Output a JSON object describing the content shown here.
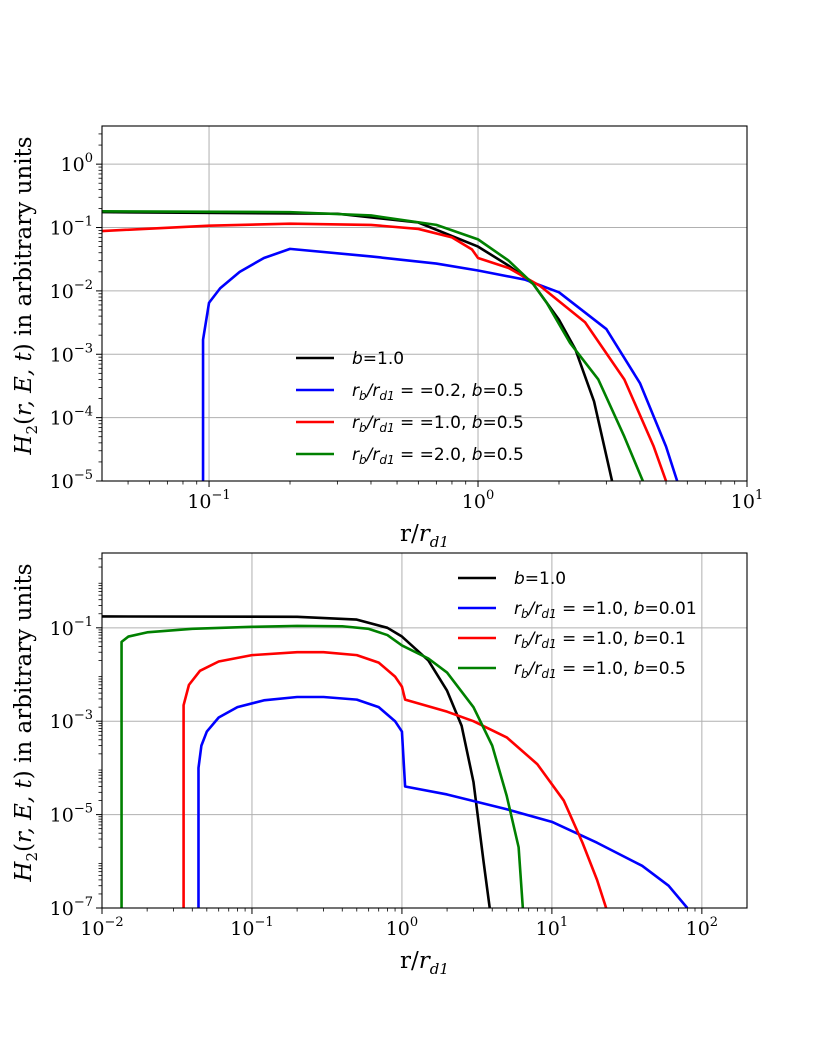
{
  "chart_data": [
    {
      "type": "line",
      "xscale": "log",
      "yscale": "log",
      "xlim": [
        0.04,
        10
      ],
      "ylim": [
        1e-05,
        4
      ],
      "grid": true,
      "xlabel": "r/r_d1",
      "ylabel": "H_2(r, E, t) in arbitrary units",
      "x_ticks": [
        {
          "base": "10",
          "exp": "−1",
          "value": 0.1
        },
        {
          "base": "10",
          "exp": "0",
          "value": 1
        },
        {
          "base": "10",
          "exp": "1",
          "value": 10
        }
      ],
      "y_ticks": [
        {
          "base": "10",
          "exp": "−5",
          "value": 1e-05
        },
        {
          "base": "10",
          "exp": "−4",
          "value": 0.0001
        },
        {
          "base": "10",
          "exp": "−3",
          "value": 0.001
        },
        {
          "base": "10",
          "exp": "−2",
          "value": 0.01
        },
        {
          "base": "10",
          "exp": "−1",
          "value": 0.1
        },
        {
          "base": "10",
          "exp": "0",
          "value": 1
        }
      ],
      "legend_position": "lower-center",
      "series": [
        {
          "name": "b=1.0",
          "label": {
            "p1": "b",
            "p2": "=1.0"
          },
          "color": "#000000",
          "points": [
            [
              0.04,
              0.175
            ],
            [
              0.3,
              0.165
            ],
            [
              0.6,
              0.12
            ],
            [
              1.0,
              0.05
            ],
            [
              1.3,
              0.025
            ],
            [
              1.6,
              0.013
            ],
            [
              2.0,
              0.0035
            ],
            [
              2.3,
              0.0012
            ],
            [
              2.7,
              0.00018
            ],
            [
              3.15,
              1e-05
            ]
          ]
        },
        {
          "name": "r_b/r_d1 = =0.2, b=0.5",
          "label": {
            "p1": "r",
            "sub1": "b",
            "p2": "/r",
            "sub2": "d1",
            "p3": " = =0.2, ",
            "p4": "b",
            "p5": "=0.5"
          },
          "color": "#0000ff",
          "points": [
            [
              0.095,
              1e-05
            ],
            [
              0.095,
              0.0017
            ],
            [
              0.1,
              0.0065
            ],
            [
              0.11,
              0.011
            ],
            [
              0.13,
              0.02
            ],
            [
              0.16,
              0.033
            ],
            [
              0.2,
              0.046
            ],
            [
              0.4,
              0.035
            ],
            [
              0.7,
              0.027
            ],
            [
              1.0,
              0.021
            ],
            [
              1.5,
              0.015
            ],
            [
              2.0,
              0.0095
            ],
            [
              3.0,
              0.0025
            ],
            [
              4.0,
              0.00035
            ],
            [
              5.0,
              3.5e-05
            ],
            [
              5.5,
              1e-05
            ]
          ]
        },
        {
          "name": "r_b/r_d1 = =1.0, b=0.5",
          "label": {
            "p1": "r",
            "sub1": "b",
            "p2": "/r",
            "sub2": "d1",
            "p3": " = =1.0, ",
            "p4": "b",
            "p5": "=0.5"
          },
          "color": "#ff0000",
          "points": [
            [
              0.04,
              0.088
            ],
            [
              0.1,
              0.107
            ],
            [
              0.2,
              0.115
            ],
            [
              0.4,
              0.11
            ],
            [
              0.6,
              0.095
            ],
            [
              0.8,
              0.07
            ],
            [
              0.95,
              0.045
            ],
            [
              1.0,
              0.033
            ],
            [
              1.3,
              0.023
            ],
            [
              1.7,
              0.012
            ],
            [
              2.5,
              0.0032
            ],
            [
              3.5,
              0.0004
            ],
            [
              4.5,
              3.5e-05
            ],
            [
              5.0,
              1e-05
            ]
          ]
        },
        {
          "name": "r_b/r_d1 = =2.0, b=0.5",
          "label": {
            "p1": "r",
            "sub1": "b",
            "p2": "/r",
            "sub2": "d1",
            "p3": " = =2.0, ",
            "p4": "b",
            "p5": "=0.5"
          },
          "color": "#008000",
          "points": [
            [
              0.04,
              0.18
            ],
            [
              0.2,
              0.175
            ],
            [
              0.4,
              0.155
            ],
            [
              0.7,
              0.11
            ],
            [
              1.0,
              0.065
            ],
            [
              1.3,
              0.03
            ],
            [
              1.6,
              0.013
            ],
            [
              1.8,
              0.0065
            ],
            [
              2.0,
              0.003
            ],
            [
              2.2,
              0.0015
            ],
            [
              2.8,
              0.0004
            ],
            [
              3.5,
              5e-05
            ],
            [
              4.1,
              1e-05
            ]
          ]
        }
      ]
    },
    {
      "type": "line",
      "xscale": "log",
      "yscale": "log",
      "xlim": [
        0.01,
        200
      ],
      "ylim": [
        1e-07,
        4
      ],
      "grid": true,
      "xlabel": "r/r_d1",
      "ylabel": "H_2(r, E, t) in arbitrary units",
      "x_ticks": [
        {
          "base": "10",
          "exp": "−2",
          "value": 0.01
        },
        {
          "base": "10",
          "exp": "−1",
          "value": 0.1
        },
        {
          "base": "10",
          "exp": "0",
          "value": 1
        },
        {
          "base": "10",
          "exp": "1",
          "value": 10
        },
        {
          "base": "10",
          "exp": "2",
          "value": 100
        }
      ],
      "y_ticks": [
        {
          "base": "10",
          "exp": "−7",
          "value": 1e-07
        },
        {
          "base": "10",
          "exp": "−5",
          "value": 1e-05
        },
        {
          "base": "10",
          "exp": "−3",
          "value": 0.001
        },
        {
          "base": "10",
          "exp": "−1",
          "value": 0.1
        }
      ],
      "legend_position": "upper-right",
      "series": [
        {
          "name": "b=1.0",
          "label": {
            "p1": "b",
            "p2": "=1.0"
          },
          "color": "#000000",
          "points": [
            [
              0.01,
              0.175
            ],
            [
              0.2,
              0.172
            ],
            [
              0.5,
              0.15
            ],
            [
              0.8,
              0.1
            ],
            [
              1.0,
              0.065
            ],
            [
              1.5,
              0.02
            ],
            [
              2.0,
              0.0045
            ],
            [
              2.5,
              0.0008
            ],
            [
              3.0,
              5e-05
            ],
            [
              3.5,
              1e-06
            ],
            [
              3.85,
              1e-07
            ]
          ]
        },
        {
          "name": "r_b/r_d1 = =1.0, b=0.01",
          "label": {
            "p1": "r",
            "sub1": "b",
            "p2": "/r",
            "sub2": "d1",
            "p3": " = =1.0, ",
            "p4": "b",
            "p5": "=0.01"
          },
          "color": "#0000ff",
          "points": [
            [
              0.044,
              1e-07
            ],
            [
              0.044,
              0.0001
            ],
            [
              0.046,
              0.0003
            ],
            [
              0.05,
              0.0006
            ],
            [
              0.06,
              0.0012
            ],
            [
              0.08,
              0.002
            ],
            [
              0.12,
              0.0028
            ],
            [
              0.2,
              0.0033
            ],
            [
              0.3,
              0.0033
            ],
            [
              0.5,
              0.0029
            ],
            [
              0.7,
              0.002
            ],
            [
              0.9,
              0.001
            ],
            [
              1.0,
              0.0006
            ],
            [
              1.05,
              4e-05
            ],
            [
              2.0,
              2.7e-05
            ],
            [
              5.0,
              1.3e-05
            ],
            [
              10,
              7e-06
            ],
            [
              20,
              2.5e-06
            ],
            [
              40,
              8e-07
            ],
            [
              60,
              3e-07
            ],
            [
              80,
              1e-07
            ]
          ]
        },
        {
          "name": "r_b/r_d1 = =1.0, b=0.1",
          "label": {
            "p1": "r",
            "sub1": "b",
            "p2": "/r",
            "sub2": "d1",
            "p3": " = =1.0, ",
            "p4": "b",
            "p5": "=0.1"
          },
          "color": "#ff0000",
          "points": [
            [
              0.035,
              1e-07
            ],
            [
              0.035,
              0.0022
            ],
            [
              0.038,
              0.006
            ],
            [
              0.045,
              0.012
            ],
            [
              0.06,
              0.019
            ],
            [
              0.1,
              0.026
            ],
            [
              0.2,
              0.03
            ],
            [
              0.3,
              0.03
            ],
            [
              0.5,
              0.026
            ],
            [
              0.7,
              0.018
            ],
            [
              0.9,
              0.009
            ],
            [
              1.0,
              0.0055
            ],
            [
              1.05,
              0.0029
            ],
            [
              2.0,
              0.0016
            ],
            [
              3.0,
              0.001
            ],
            [
              5.0,
              0.00045
            ],
            [
              8.0,
              0.00012
            ],
            [
              12,
              2e-05
            ],
            [
              16,
              2.5e-06
            ],
            [
              20,
              4e-07
            ],
            [
              23,
              1e-07
            ]
          ]
        },
        {
          "name": "r_b/r_d1 = =1.0, b=0.5",
          "label": {
            "p1": "r",
            "sub1": "b",
            "p2": "/r",
            "sub2": "d1",
            "p3": " = =1.0, ",
            "p4": "b",
            "p5": "=0.5"
          },
          "color": "#008000",
          "points": [
            [
              0.0135,
              1e-07
            ],
            [
              0.0135,
              0.05
            ],
            [
              0.015,
              0.065
            ],
            [
              0.02,
              0.08
            ],
            [
              0.04,
              0.095
            ],
            [
              0.1,
              0.105
            ],
            [
              0.2,
              0.11
            ],
            [
              0.4,
              0.108
            ],
            [
              0.6,
              0.095
            ],
            [
              0.8,
              0.07
            ],
            [
              1.0,
              0.042
            ],
            [
              1.5,
              0.022
            ],
            [
              2.0,
              0.011
            ],
            [
              3.0,
              0.002
            ],
            [
              4.0,
              0.0003
            ],
            [
              5.0,
              2.5e-05
            ],
            [
              6.0,
              2e-06
            ],
            [
              6.4,
              1e-07
            ]
          ]
        }
      ]
    }
  ]
}
